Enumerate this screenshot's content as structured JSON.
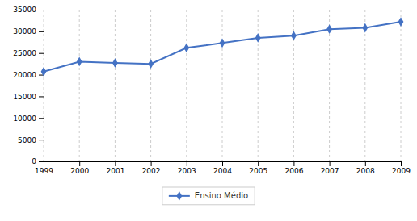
{
  "chart_data": {
    "type": "line",
    "x": [
      1999,
      2000,
      2001,
      2002,
      2003,
      2004,
      2005,
      2006,
      2007,
      2008,
      2009
    ],
    "series": [
      {
        "name": "Ensino Médio",
        "color": "#4472C4",
        "marker": "diamond",
        "line_style": "solid",
        "values": [
          20700,
          23000,
          22700,
          22500,
          26200,
          27300,
          28500,
          29000,
          30500,
          30800,
          32200
        ]
      }
    ],
    "xlim": [
      1999,
      2009
    ],
    "xticks": [
      1999,
      2000,
      2001,
      2002,
      2003,
      2004,
      2005,
      2006,
      2007,
      2008,
      2009
    ],
    "ylim": [
      0,
      35000
    ],
    "yticks": [
      0,
      5000,
      10000,
      15000,
      20000,
      25000,
      30000,
      35000
    ],
    "grid": "x",
    "legend": "bottom"
  }
}
